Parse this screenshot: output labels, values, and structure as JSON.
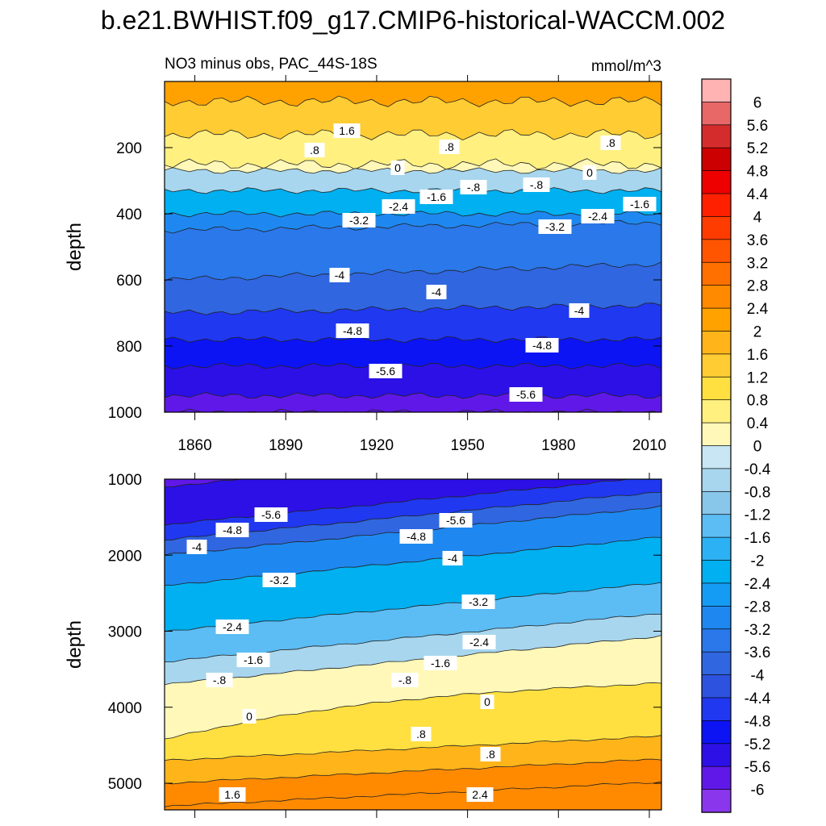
{
  "title": "b.e21.BWHIST.f09_g17.CMIP6-historical-WACCM.002",
  "subtitle_left": "NO3 minus obs, PAC_44S-18S",
  "subtitle_right": "mmol/m^3",
  "chart_data": [
    {
      "type": "heatmap",
      "name": "upper-panel",
      "ylabel": "depth",
      "xlim": [
        1850,
        2014
      ],
      "ylim": [
        1000,
        0
      ],
      "xticks": [
        1860,
        1890,
        1920,
        1950,
        1980,
        2010
      ],
      "yticks": [
        200,
        400,
        600,
        800,
        1000
      ],
      "contour_depth_approx": [
        {
          "depth": 60,
          "value": 2.0
        },
        {
          "depth": 160,
          "value": 1.2
        },
        {
          "depth": 250,
          "value": 0.4
        },
        {
          "depth": 270,
          "value": 0
        },
        {
          "depth": 330,
          "value": -0.8
        },
        {
          "depth": 400,
          "value": -2.4
        },
        {
          "depth": 450,
          "value": -3.2
        },
        {
          "depth": 600,
          "value": -3.6
        },
        {
          "depth": 700,
          "value": -4.0
        },
        {
          "depth": 780,
          "value": -4.8
        },
        {
          "depth": 860,
          "value": -5.2
        },
        {
          "depth": 950,
          "value": -5.6
        },
        {
          "depth": 1000,
          "value": -6.0
        }
      ],
      "contour_labels": [
        "1.6",
        ".8",
        ".8",
        ".8",
        "0",
        "0",
        "-.8",
        "-.8",
        "-1.6",
        "-1.6",
        "-2.4",
        "-2.4",
        "-3.2",
        "-3.2",
        "-4",
        "-4",
        "-4",
        "-4.8",
        "-4.8",
        "-5.6",
        "-5.6"
      ]
    },
    {
      "type": "heatmap",
      "name": "lower-panel",
      "ylabel": "depth",
      "xlim": [
        1850,
        2014
      ],
      "ylim": [
        5350,
        1000
      ],
      "yticks": [
        1000,
        2000,
        3000,
        4000,
        5000
      ],
      "contour_depth_approx": [
        {
          "depth": 1100,
          "value": -6.0
        },
        {
          "depth": 1600,
          "value": -5.6
        },
        {
          "depth": 1800,
          "value": -4.8
        },
        {
          "depth": 2000,
          "value": -4.0
        },
        {
          "depth": 2400,
          "value": -3.2
        },
        {
          "depth": 3000,
          "value": -2.4
        },
        {
          "depth": 3400,
          "value": -1.6
        },
        {
          "depth": 3700,
          "value": -0.8
        },
        {
          "depth": 4000,
          "value": 0
        },
        {
          "depth": 4700,
          "value": 0.8
        },
        {
          "depth": 5000,
          "value": 1.6
        },
        {
          "depth": 5300,
          "value": 2.4
        }
      ],
      "contour_labels": [
        "-5.6",
        "-5.6",
        "-4.8",
        "-4.8",
        "-4",
        "-4",
        "-3.2",
        "-3.2",
        "-2.4",
        "-2.4",
        "-1.6",
        "-1.6",
        "-.8",
        "-.8",
        "0",
        "0",
        ".8",
        ".8",
        "1.6",
        "2.4"
      ]
    }
  ],
  "colorbar": {
    "labels": [
      "6",
      "5.6",
      "5.2",
      "4.8",
      "4.4",
      "4",
      "3.6",
      "3.2",
      "2.8",
      "2.4",
      "2",
      "1.6",
      "1.2",
      "0.8",
      "0.4",
      "0",
      "-0.4",
      "-0.8",
      "-1.2",
      "-1.6",
      "-2",
      "-2.4",
      "-2.8",
      "-3.2",
      "-3.6",
      "-4",
      "-4.4",
      "-4.8",
      "-5.2",
      "-5.6",
      "-6"
    ],
    "colors": [
      "#ffb3b3",
      "#e86868",
      "#d42c2c",
      "#cc0000",
      "#ee0000",
      "#ff2000",
      "#ff3c00",
      "#ff5500",
      "#ff7000",
      "#ff8a00",
      "#ffa200",
      "#ffb51a",
      "#ffcc33",
      "#ffe040",
      "#fff080",
      "#fff8b8",
      "#c8e6f4",
      "#a8d6ee",
      "#88c6ea",
      "#5cbcf4",
      "#2cb2f4",
      "#00b0f0",
      "#149cf4",
      "#1e88f0",
      "#2a78ea",
      "#3066e0",
      "#2e52e0",
      "#2038f0",
      "#0c14f4",
      "#2c10e6",
      "#6018e8",
      "#8a36ec"
    ]
  }
}
